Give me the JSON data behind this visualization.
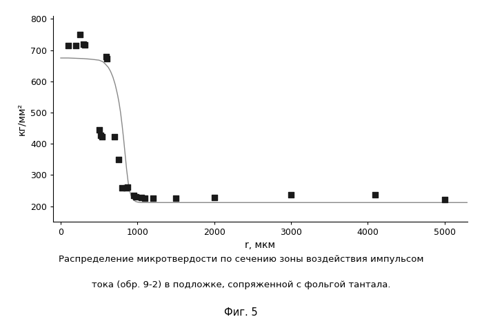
{
  "scatter_x": [
    100,
    200,
    250,
    300,
    310,
    500,
    520,
    540,
    590,
    600,
    700,
    750,
    800,
    850,
    870,
    950,
    980,
    1050,
    1100,
    1200,
    1500,
    2000,
    3000,
    4100,
    5000
  ],
  "scatter_y": [
    715,
    715,
    750,
    720,
    718,
    445,
    427,
    423,
    680,
    672,
    422,
    350,
    260,
    258,
    262,
    235,
    230,
    228,
    225,
    225,
    225,
    228,
    238,
    238,
    222
  ],
  "curve_x": [
    0,
    50,
    100,
    200,
    300,
    400,
    500,
    550,
    580,
    620,
    650,
    680,
    710,
    740,
    760,
    780,
    800,
    820,
    840,
    860,
    880,
    900,
    920,
    950,
    980,
    1010,
    1050,
    1100,
    1200,
    1500,
    2000,
    3000,
    4000,
    5000,
    5300
  ],
  "curve_y": [
    675,
    675,
    675,
    674,
    673,
    671,
    668,
    663,
    656,
    645,
    632,
    614,
    590,
    558,
    532,
    500,
    460,
    415,
    365,
    315,
    275,
    248,
    232,
    220,
    215,
    213,
    212,
    212,
    212,
    212,
    212,
    212,
    212,
    212,
    212
  ],
  "xlabel": "r, мкм",
  "ylabel": "кг/мм²",
  "xlim": [
    -100,
    5300
  ],
  "ylim": [
    150,
    810
  ],
  "yticks": [
    200,
    300,
    400,
    500,
    600,
    700,
    800
  ],
  "xticks": [
    0,
    1000,
    2000,
    3000,
    4000,
    5000
  ],
  "xtick_labels": [
    "0",
    "1000",
    "2000",
    "3000",
    "4000",
    "5000"
  ],
  "caption_line1": "Распределение микротвердости по сечению зоны воздействия импульсом",
  "caption_line2": "тока (обр. 9-2) в подложке, сопряженной с фольгой тантала.",
  "fig_label": "Фиг. 5",
  "bg_color": "#ffffff",
  "scatter_color": "#1a1a1a",
  "curve_color": "#888888",
  "marker_size": 6,
  "curve_linewidth": 1.0
}
